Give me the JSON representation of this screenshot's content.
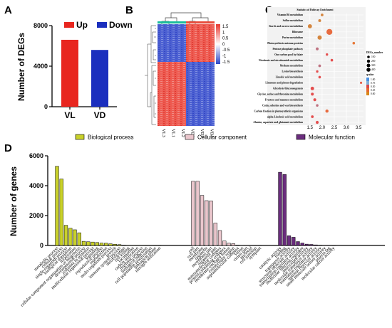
{
  "panels": {
    "a": "A",
    "b": "B",
    "c": "C",
    "d": "D"
  },
  "chart_data": [
    {
      "type": "bar",
      "categories": [
        "VL",
        "VD"
      ],
      "series": [
        {
          "name": "Up",
          "values": [
            6600,
            null
          ],
          "color": "#e8261f"
        },
        {
          "name": "Down",
          "values": [
            null,
            5600
          ],
          "color": "#1b2fbe"
        }
      ],
      "ylabel": "Number of DEGs",
      "ylim": [
        0,
        8000
      ],
      "yticks": [
        "0",
        "4000",
        "8000"
      ],
      "legend": "top"
    },
    {
      "type": "heatmap",
      "columns": [
        "VL3",
        "VL1",
        "VL2",
        "VD3",
        "VD2",
        "VD1"
      ],
      "colorbar_ticks": [
        "1.5",
        "1",
        "0.5",
        "0",
        "-0.5",
        "-1",
        "-1.5"
      ],
      "colors": {
        "high": "#e8372e",
        "mid": "#ffffff",
        "low": "#2c46c8"
      }
    },
    {
      "type": "scatter",
      "title": "Statistics of Pathway Enrichment",
      "pathways": [
        "Vitamin B6 metabolism",
        "Sulfur metabolism",
        "Starch and sucrose metabolism",
        "Ribosome",
        "Purine metabolism",
        "Photosynthesis-antenna proteins",
        "Pentose phosphate pathway",
        "One carbon pool by folate",
        "Nicotinate and nicotinamide metabolism",
        "Methane metabolism",
        "Lysine biosynthesis",
        "Linoleic acid metabolism",
        "Limonene and pinene degradation",
        "Glycolysis/Gluconeogenesis",
        "Glycine, serine and threonine metabolism",
        "Fructose and mannose metabolism",
        "Cutin, suberine and wax biosynthesis",
        "Carbon fixation in photosynthetic organisms",
        "alpha-Linolenic acid metabolism",
        "Alanine, aspartate and glutamate metabolism"
      ],
      "points": [
        {
          "x": 2.0,
          "count": 30,
          "q": 0.9
        },
        {
          "x": 1.9,
          "count": 35,
          "q": 0.8
        },
        {
          "x": 1.5,
          "count": 110,
          "q": 0.7
        },
        {
          "x": 2.3,
          "count": 280,
          "q": 0.3
        },
        {
          "x": 1.9,
          "count": 120,
          "q": 0.7
        },
        {
          "x": 3.3,
          "count": 25,
          "q": 0.2
        },
        {
          "x": 1.8,
          "count": 40,
          "q": 0.6
        },
        {
          "x": 2.2,
          "count": 20,
          "q": 0.5
        },
        {
          "x": 2.4,
          "count": 25,
          "q": 0.5
        },
        {
          "x": 1.9,
          "count": 30,
          "q": 0.6
        },
        {
          "x": 1.8,
          "count": 20,
          "q": 0.5
        },
        {
          "x": 1.9,
          "count": 25,
          "q": 0.5
        },
        {
          "x": 3.6,
          "count": 15,
          "q": 0.4
        },
        {
          "x": 1.6,
          "count": 70,
          "q": 0.5
        },
        {
          "x": 1.6,
          "count": 40,
          "q": 0.5
        },
        {
          "x": 1.7,
          "count": 40,
          "q": 0.5
        },
        {
          "x": 1.8,
          "count": 25,
          "q": 0.6
        },
        {
          "x": 2.2,
          "count": 50,
          "q": 0.3
        },
        {
          "x": 1.6,
          "count": 30,
          "q": 0.5
        },
        {
          "x": 1.8,
          "count": 40,
          "q": 0.5
        }
      ],
      "xticks": [
        "1.5",
        "2.0",
        "2.5",
        "3.0",
        "3.5"
      ],
      "xlim": [
        1.3,
        3.7
      ],
      "size_legend_title": "DEGs_number",
      "size_legend": [
        "100",
        "200",
        "300",
        "400"
      ],
      "color_legend_title": "qvalue",
      "color_legend": [
        "1.00",
        "0.75",
        "0.50",
        "0.25",
        "0.00"
      ]
    },
    {
      "type": "bar",
      "ylabel": "Number of genes",
      "ylim": [
        0,
        6000
      ],
      "yticks": [
        "0",
        "2000",
        "4000",
        "6000"
      ],
      "legend": "top",
      "series": [
        {
          "name": "Biological process",
          "color": "#c9d12a",
          "categories": [
            "metabolic process",
            "cellular process",
            "single-organism process",
            "biological regulation",
            "localization",
            "cellular component organization or biogenesis",
            "developmental process",
            "response to stimulus",
            "multicellular organismal process",
            "signaling",
            "reproductive process",
            "reproduction",
            "multi-organism process",
            "growth",
            "immune system process",
            "detoxification",
            "cell killing",
            "locomotion",
            "carbon utilization",
            "rhythmic process",
            "biological adhesion",
            "cell population proliferation",
            "biological phase",
            "nitrogen utilization"
          ],
          "values": [
            5300,
            4450,
            1350,
            1150,
            1050,
            850,
            280,
            250,
            230,
            200,
            160,
            150,
            110,
            80,
            60,
            20,
            10,
            8,
            6,
            6,
            5,
            4,
            3,
            2
          ]
        },
        {
          "name": "Cellular component",
          "color": "#eac6cc",
          "categories": [
            "cell",
            "cell part",
            "membrane",
            "organelle",
            "membrane part",
            "organelle part",
            "macromolecular complex",
            "protein-containing complex",
            "membrane-enclosed lumen",
            "extracellular region",
            "supramolecular complex",
            "virion",
            "virion part",
            "nucleoid",
            "cell junction",
            "symplast"
          ],
          "values": [
            4300,
            4300,
            3350,
            3000,
            2980,
            1500,
            1000,
            300,
            150,
            120,
            20,
            10,
            8,
            5,
            4,
            3
          ]
        },
        {
          "name": "Molecular function",
          "color": "#6b2d7e",
          "categories": [
            "catalytic activity",
            "binding",
            "transporter activity",
            "structural molecule activity",
            "transcription regulator activity",
            "molecular function regulator",
            "antioxidant activity",
            "molecular transducer activity",
            "translation regulator activity",
            "nutrient reservoir activity",
            "small molecule sensor activity",
            "protein tag",
            "molecular carrier activity"
          ],
          "values": [
            4900,
            4750,
            650,
            550,
            260,
            160,
            90,
            70,
            40,
            20,
            8,
            5,
            3
          ]
        }
      ]
    }
  ]
}
